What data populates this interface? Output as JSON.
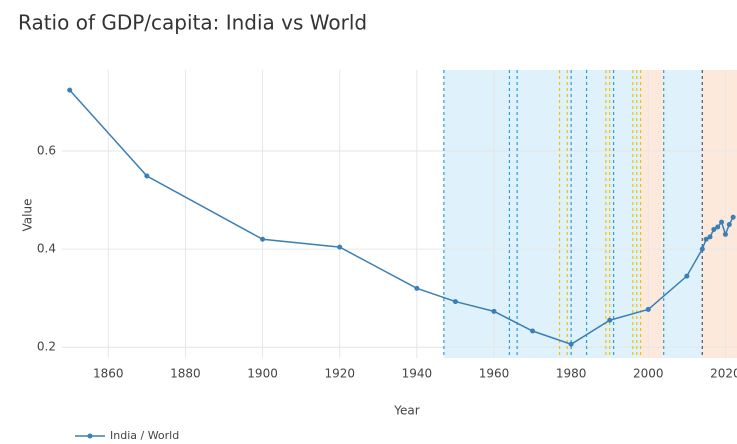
{
  "chart_data": {
    "type": "line",
    "title": "Ratio of GDP/capita: India vs World",
    "x_label": "Year",
    "y_label": "Value",
    "x": [
      1850,
      1870,
      1900,
      1920,
      1940,
      1950,
      1960,
      1970,
      1980,
      1990,
      2000,
      2010,
      2014,
      2015,
      2016,
      2017,
      2018,
      2019,
      2020,
      2021,
      2022
    ],
    "series": [
      {
        "name": "India / World",
        "color": "#3a7fb5",
        "values": [
          0.724,
          0.549,
          0.42,
          0.404,
          0.32,
          0.293,
          0.273,
          0.233,
          0.206,
          0.255,
          0.277,
          0.345,
          0.4,
          0.42,
          0.425,
          0.44,
          0.445,
          0.455,
          0.43,
          0.45,
          0.465
        ]
      }
    ],
    "xlim": [
      1848,
      2023
    ],
    "ylim": [
      0.178,
      0.765
    ],
    "xticks": [
      1860,
      1880,
      1900,
      1920,
      1940,
      1960,
      1980,
      2000,
      2020
    ],
    "yticks": [
      0.2,
      0.4,
      0.6
    ],
    "grid": true,
    "legend": "bottom-left",
    "regions": [
      {
        "start": 1947,
        "end": 1998,
        "color": "#dff2fb"
      },
      {
        "start": 1998,
        "end": 2004,
        "color": "#fde9dc"
      },
      {
        "start": 2004,
        "end": 2014,
        "color": "#dff2fb"
      },
      {
        "start": 2014,
        "end": 2023,
        "color": "#fde9dc"
      }
    ],
    "vlines": [
      {
        "x": 1947,
        "color": "#2a9fd6"
      },
      {
        "x": 1964,
        "color": "#2a9fd6"
      },
      {
        "x": 1966,
        "color": "#2a9fd6"
      },
      {
        "x": 1977,
        "color": "#f2c200"
      },
      {
        "x": 1979,
        "color": "#f2c200"
      },
      {
        "x": 1980,
        "color": "#2a9fd6"
      },
      {
        "x": 1984,
        "color": "#2a9fd6"
      },
      {
        "x": 1989,
        "color": "#f2c200"
      },
      {
        "x": 1990,
        "color": "#f2c200"
      },
      {
        "x": 1991,
        "color": "#2a9fd6"
      },
      {
        "x": 1996,
        "color": "#f2c200"
      },
      {
        "x": 1997,
        "color": "#f2c200"
      },
      {
        "x": 1998,
        "color": "#f2c200"
      },
      {
        "x": 2004,
        "color": "#2a9fd6"
      },
      {
        "x": 2014,
        "color": "#555555"
      }
    ]
  }
}
